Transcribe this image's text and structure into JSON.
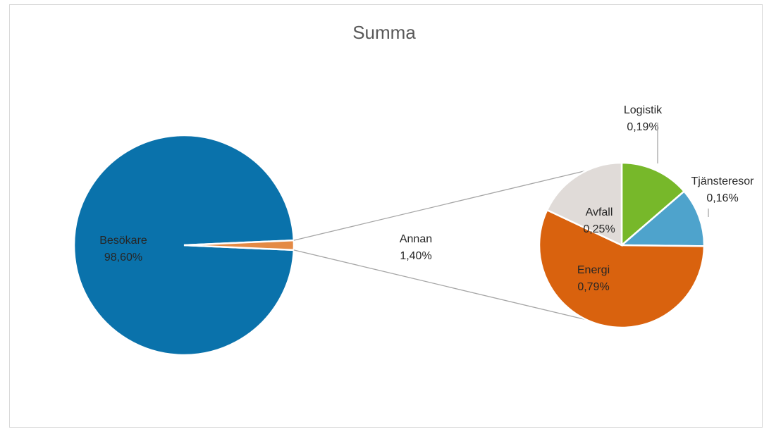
{
  "chart_data": {
    "type": "pie-of-pie",
    "title": "Summa",
    "categories": [
      "Besökare",
      "Annan"
    ],
    "values": [
      98.6,
      1.4
    ],
    "value_labels": [
      "98,60%",
      "1,40%"
    ],
    "colors": [
      "#0a72ab",
      "#e48a45"
    ],
    "secondary": {
      "categories": [
        "Logistik",
        "Tjänsteresor",
        "Energi",
        "Avfall"
      ],
      "values": [
        0.19,
        0.16,
        0.79,
        0.25
      ],
      "value_labels": [
        "0,19%",
        "0,16%",
        "0,79%",
        "0,25%"
      ],
      "colors": [
        "#77b82a",
        "#4ea3cc",
        "#d9620e",
        "#e0dbd8"
      ]
    }
  }
}
